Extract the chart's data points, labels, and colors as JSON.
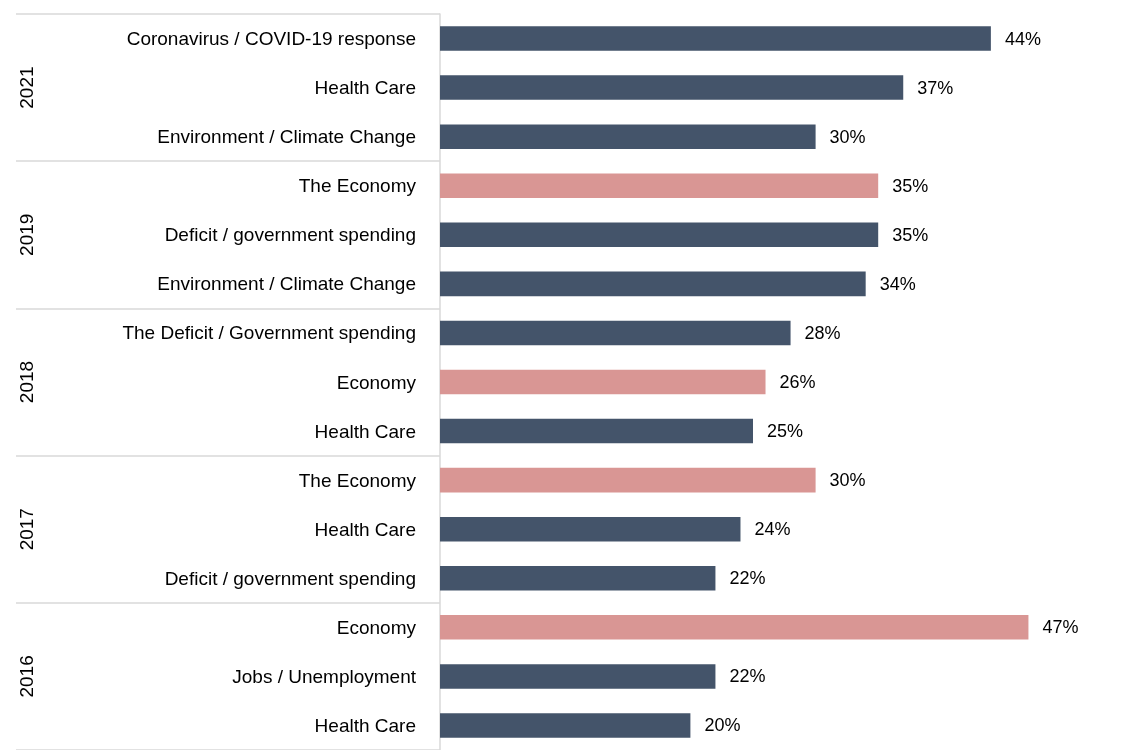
{
  "chart_data": {
    "type": "bar",
    "orientation": "horizontal",
    "categories": [
      "Coronavirus / COVID-19 response",
      "Health Care",
      "Environment / Climate Change",
      "The Economy",
      "Deficit / government spending",
      "Environment / Climate Change",
      "The Deficit / Government spending",
      "Economy",
      "Health Care",
      "The Economy",
      "Health Care",
      "Deficit / government spending",
      "Economy",
      "Jobs / Unemployment",
      "Health Care"
    ],
    "values": [
      44,
      37,
      30,
      35,
      35,
      34,
      28,
      26,
      25,
      30,
      24,
      22,
      47,
      22,
      20
    ],
    "value_labels": [
      "44%",
      "37%",
      "30%",
      "35%",
      "35%",
      "34%",
      "28%",
      "26%",
      "25%",
      "30%",
      "24%",
      "22%",
      "47%",
      "22%",
      "20%"
    ],
    "colors": [
      "#44546a",
      "#44546a",
      "#44546a",
      "#d99694",
      "#44546a",
      "#44546a",
      "#44546a",
      "#d99694",
      "#44546a",
      "#d99694",
      "#44546a",
      "#44546a",
      "#d99694",
      "#44546a",
      "#44546a"
    ],
    "annotations": [
      "2021",
      "2019",
      "2018",
      "2017",
      "2016"
    ],
    "grid": false
  }
}
